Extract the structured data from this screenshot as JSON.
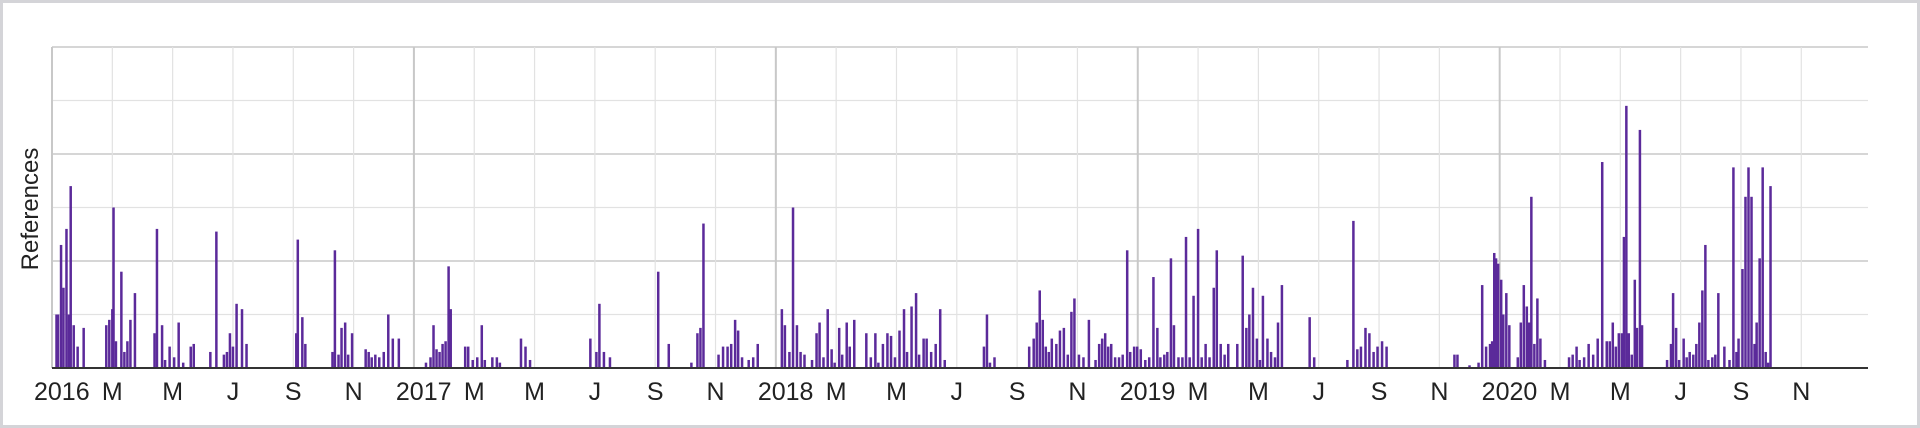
{
  "chart_data": {
    "type": "bar",
    "title": "",
    "xlabel": "",
    "ylabel": "References",
    "grid": true,
    "colors": {
      "bars": "#5b2a9a",
      "grid": "#e2e2e2",
      "major_grid": "#c8c8c8",
      "axis": "#333333",
      "border": "#d4d4d8"
    },
    "x_range": [
      "2016-01",
      "2020-12"
    ],
    "x_tick_labels": [
      "2016",
      "M",
      "M",
      "J",
      "S",
      "N",
      "2017",
      "M",
      "M",
      "J",
      "S",
      "N",
      "2018",
      "M",
      "M",
      "J",
      "S",
      "N",
      "2019",
      "M",
      "M",
      "J",
      "S",
      "N",
      "2020",
      "M",
      "M",
      "J",
      "S",
      "N"
    ],
    "x_tick_months": [
      0,
      2,
      4,
      6,
      8,
      10,
      12,
      14,
      16,
      18,
      20,
      22,
      24,
      26,
      28,
      30,
      32,
      34,
      36,
      38,
      40,
      42,
      44,
      46,
      48,
      50,
      52,
      54,
      56,
      58
    ],
    "year_starts": [
      0,
      12,
      24,
      36,
      48
    ],
    "y_max": 12,
    "series": [
      {
        "values": [
          [
            0.15,
            2
          ],
          [
            0.2,
            2
          ],
          [
            0.3,
            4.6
          ],
          [
            0.38,
            3
          ],
          [
            0.48,
            5.2
          ],
          [
            0.56,
            2
          ],
          [
            0.62,
            6.8
          ],
          [
            0.72,
            1.6
          ],
          [
            0.85,
            0.8
          ],
          [
            1.05,
            1.5
          ],
          [
            1.8,
            1.6
          ],
          [
            1.9,
            1.8
          ],
          [
            2.0,
            2.2
          ],
          [
            2.04,
            6
          ],
          [
            2.12,
            1
          ],
          [
            2.3,
            3.6
          ],
          [
            2.4,
            0.6
          ],
          [
            2.5,
            1
          ],
          [
            2.6,
            1.8
          ],
          [
            2.75,
            2.8
          ],
          [
            3.4,
            1.3
          ],
          [
            3.48,
            5.2
          ],
          [
            3.65,
            1.6
          ],
          [
            3.75,
            0.3
          ],
          [
            3.9,
            0.8
          ],
          [
            4.05,
            0.4
          ],
          [
            4.2,
            1.7
          ],
          [
            4.35,
            0.2
          ],
          [
            4.6,
            0.8
          ],
          [
            4.7,
            0.9
          ],
          [
            5.25,
            0.6
          ],
          [
            5.45,
            5.1
          ],
          [
            5.7,
            0.5
          ],
          [
            5.8,
            0.6
          ],
          [
            5.9,
            1.3
          ],
          [
            6.0,
            0.8
          ],
          [
            6.12,
            2.4
          ],
          [
            6.3,
            2.2
          ],
          [
            6.45,
            0.9
          ],
          [
            8.1,
            1.3
          ],
          [
            8.15,
            4.8
          ],
          [
            8.3,
            1.9
          ],
          [
            8.4,
            0.9
          ],
          [
            9.3,
            0.6
          ],
          [
            9.38,
            4.4
          ],
          [
            9.5,
            0.5
          ],
          [
            9.6,
            1.5
          ],
          [
            9.72,
            1.7
          ],
          [
            9.82,
            0.5
          ],
          [
            9.95,
            1.3
          ],
          [
            10.4,
            0.7
          ],
          [
            10.5,
            0.6
          ],
          [
            10.6,
            0.4
          ],
          [
            10.72,
            0.5
          ],
          [
            10.85,
            0.4
          ],
          [
            11.0,
            0.6
          ],
          [
            11.15,
            2
          ],
          [
            11.3,
            1.1
          ],
          [
            11.5,
            1.1
          ],
          [
            12.4,
            0.2
          ],
          [
            12.55,
            0.4
          ],
          [
            12.65,
            1.6
          ],
          [
            12.75,
            0.7
          ],
          [
            12.85,
            0.6
          ],
          [
            12.95,
            0.9
          ],
          [
            13.05,
            1
          ],
          [
            13.15,
            3.8
          ],
          [
            13.22,
            2.2
          ],
          [
            13.7,
            0.8
          ],
          [
            13.8,
            0.8
          ],
          [
            13.95,
            0.3
          ],
          [
            14.1,
            0.4
          ],
          [
            14.25,
            1.6
          ],
          [
            14.35,
            0.3
          ],
          [
            14.6,
            0.4
          ],
          [
            14.75,
            0.4
          ],
          [
            14.85,
            0.2
          ],
          [
            15.55,
            1.1
          ],
          [
            15.7,
            0.8
          ],
          [
            15.85,
            0.3
          ],
          [
            17.85,
            1.1
          ],
          [
            18.05,
            0.6
          ],
          [
            18.15,
            2.4
          ],
          [
            18.3,
            0.6
          ],
          [
            18.5,
            0.4
          ],
          [
            20.1,
            3.6
          ],
          [
            20.45,
            0.9
          ],
          [
            21.2,
            0.2
          ],
          [
            21.4,
            1.3
          ],
          [
            21.5,
            1.5
          ],
          [
            21.6,
            5.4
          ],
          [
            22.1,
            0.5
          ],
          [
            22.25,
            0.8
          ],
          [
            22.4,
            0.8
          ],
          [
            22.52,
            0.9
          ],
          [
            22.65,
            1.8
          ],
          [
            22.75,
            1.4
          ],
          [
            22.88,
            0.4
          ],
          [
            23.1,
            0.3
          ],
          [
            23.25,
            0.4
          ],
          [
            23.4,
            0.9
          ],
          [
            24.2,
            2.2
          ],
          [
            24.3,
            1.6
          ],
          [
            24.45,
            0.6
          ],
          [
            24.57,
            6
          ],
          [
            24.7,
            1.6
          ],
          [
            24.82,
            0.6
          ],
          [
            24.95,
            0.5
          ],
          [
            25.2,
            0.3
          ],
          [
            25.35,
            1.3
          ],
          [
            25.45,
            1.7
          ],
          [
            25.58,
            0.4
          ],
          [
            25.72,
            2.2
          ],
          [
            25.85,
            0.7
          ],
          [
            25.95,
            0.2
          ],
          [
            26.1,
            1.5
          ],
          [
            26.2,
            0.5
          ],
          [
            26.35,
            1.7
          ],
          [
            26.45,
            0.8
          ],
          [
            26.6,
            1.8
          ],
          [
            27.0,
            1.3
          ],
          [
            27.15,
            0.4
          ],
          [
            27.3,
            1.3
          ],
          [
            27.4,
            0.2
          ],
          [
            27.55,
            0.9
          ],
          [
            27.7,
            1.3
          ],
          [
            27.82,
            1.2
          ],
          [
            27.95,
            0.4
          ],
          [
            28.1,
            1.4
          ],
          [
            28.25,
            2.2
          ],
          [
            28.35,
            0.6
          ],
          [
            28.5,
            2.3
          ],
          [
            28.65,
            2.8
          ],
          [
            28.75,
            0.5
          ],
          [
            28.9,
            1.1
          ],
          [
            29.0,
            1.1
          ],
          [
            29.15,
            0.6
          ],
          [
            29.3,
            0.9
          ],
          [
            29.45,
            2.2
          ],
          [
            29.6,
            0.3
          ],
          [
            30.9,
            0.8
          ],
          [
            31.0,
            2
          ],
          [
            31.1,
            0.2
          ],
          [
            31.25,
            0.4
          ],
          [
            32.4,
            0.8
          ],
          [
            32.55,
            1.1
          ],
          [
            32.65,
            1.7
          ],
          [
            32.75,
            2.9
          ],
          [
            32.85,
            1.8
          ],
          [
            32.95,
            0.8
          ],
          [
            33.05,
            0.6
          ],
          [
            33.15,
            1.1
          ],
          [
            33.3,
            0.9
          ],
          [
            33.42,
            1.4
          ],
          [
            33.55,
            1.5
          ],
          [
            33.68,
            0.5
          ],
          [
            33.8,
            2.1
          ],
          [
            33.9,
            2.6
          ],
          [
            34.05,
            0.5
          ],
          [
            34.2,
            0.4
          ],
          [
            34.38,
            1.8
          ],
          [
            34.6,
            0.3
          ],
          [
            34.72,
            0.9
          ],
          [
            34.82,
            1.1
          ],
          [
            34.92,
            1.3
          ],
          [
            35.02,
            0.8
          ],
          [
            35.12,
            0.9
          ],
          [
            35.25,
            0.4
          ],
          [
            35.38,
            0.4
          ],
          [
            35.5,
            0.5
          ],
          [
            35.65,
            4.4
          ],
          [
            35.75,
            0.6
          ],
          [
            35.88,
            0.8
          ],
          [
            35.98,
            0.8
          ],
          [
            36.1,
            0.7
          ],
          [
            36.25,
            0.3
          ],
          [
            36.38,
            0.4
          ],
          [
            36.52,
            3.4
          ],
          [
            36.65,
            1.5
          ],
          [
            36.75,
            0.4
          ],
          [
            36.88,
            0.5
          ],
          [
            36.98,
            0.6
          ],
          [
            37.1,
            4.1
          ],
          [
            37.2,
            1.6
          ],
          [
            37.35,
            0.4
          ],
          [
            37.48,
            0.4
          ],
          [
            37.6,
            4.9
          ],
          [
            37.72,
            0.4
          ],
          [
            37.85,
            2.7
          ],
          [
            38.0,
            5.2
          ],
          [
            38.12,
            0.4
          ],
          [
            38.25,
            0.9
          ],
          [
            38.38,
            0.4
          ],
          [
            38.52,
            3
          ],
          [
            38.62,
            4.4
          ],
          [
            38.75,
            0.9
          ],
          [
            38.88,
            0.5
          ],
          [
            39.0,
            0.9
          ],
          [
            39.3,
            0.9
          ],
          [
            39.48,
            4.2
          ],
          [
            39.6,
            1.5
          ],
          [
            39.7,
            2
          ],
          [
            39.82,
            3
          ],
          [
            39.95,
            1.1
          ],
          [
            40.05,
            0.3
          ],
          [
            40.15,
            2.7
          ],
          [
            40.3,
            1.1
          ],
          [
            40.42,
            0.6
          ],
          [
            40.55,
            0.4
          ],
          [
            40.65,
            1.7
          ],
          [
            40.78,
            3.1
          ],
          [
            41.7,
            1.9
          ],
          [
            41.85,
            0.4
          ],
          [
            42.95,
            0.3
          ],
          [
            43.15,
            5.5
          ],
          [
            43.28,
            0.7
          ],
          [
            43.4,
            0.8
          ],
          [
            43.55,
            1.5
          ],
          [
            43.68,
            1.3
          ],
          [
            43.82,
            0.6
          ],
          [
            43.95,
            0.8
          ],
          [
            44.1,
            1
          ],
          [
            44.25,
            0.8
          ],
          [
            46.5,
            0.5
          ],
          [
            46.6,
            0.5
          ],
          [
            47.0,
            0.1
          ],
          [
            47.3,
            0.2
          ],
          [
            47.42,
            3.1
          ],
          [
            47.55,
            0.8
          ],
          [
            47.68,
            0.9
          ],
          [
            47.75,
            1
          ],
          [
            47.82,
            4.3
          ],
          [
            47.88,
            4.1
          ],
          [
            47.95,
            3.9
          ],
          [
            48.05,
            3.3
          ],
          [
            48.12,
            2
          ],
          [
            48.22,
            2.8
          ],
          [
            48.32,
            1.6
          ],
          [
            48.6,
            0.4
          ],
          [
            48.7,
            1.7
          ],
          [
            48.8,
            3.1
          ],
          [
            48.9,
            2.3
          ],
          [
            48.98,
            1.7
          ],
          [
            49.05,
            6.4
          ],
          [
            49.15,
            0.9
          ],
          [
            49.25,
            2.6
          ],
          [
            49.35,
            1.1
          ],
          [
            49.5,
            0.3
          ],
          [
            50.3,
            0.4
          ],
          [
            50.42,
            0.5
          ],
          [
            50.55,
            0.8
          ],
          [
            50.65,
            0.3
          ],
          [
            50.8,
            0.4
          ],
          [
            50.95,
            0.9
          ],
          [
            51.1,
            0.5
          ],
          [
            51.25,
            1.1
          ],
          [
            51.4,
            7.7
          ],
          [
            51.55,
            1
          ],
          [
            51.65,
            1
          ],
          [
            51.75,
            1.7
          ],
          [
            51.85,
            0.8
          ],
          [
            51.95,
            1.3
          ],
          [
            52.05,
            1.3
          ],
          [
            52.12,
            4.9
          ],
          [
            52.2,
            9.8
          ],
          [
            52.28,
            1.3
          ],
          [
            52.38,
            0.5
          ],
          [
            52.48,
            3.3
          ],
          [
            52.55,
            1.5
          ],
          [
            52.65,
            8.9
          ],
          [
            52.72,
            1.6
          ],
          [
            53.55,
            0.3
          ],
          [
            53.68,
            0.9
          ],
          [
            53.75,
            2.8
          ],
          [
            53.85,
            1.5
          ],
          [
            53.95,
            0.3
          ],
          [
            54.1,
            1.1
          ],
          [
            54.2,
            0.4
          ],
          [
            54.3,
            0.6
          ],
          [
            54.42,
            0.5
          ],
          [
            54.52,
            0.9
          ],
          [
            54.62,
            1.7
          ],
          [
            54.72,
            2.9
          ],
          [
            54.82,
            4.6
          ],
          [
            54.92,
            0.3
          ],
          [
            55.05,
            0.4
          ],
          [
            55.15,
            0.5
          ],
          [
            55.25,
            2.8
          ],
          [
            55.45,
            0.8
          ],
          [
            55.62,
            0.3
          ],
          [
            55.75,
            7.5
          ],
          [
            55.85,
            0.6
          ],
          [
            55.92,
            1.1
          ],
          [
            56.05,
            3.7
          ],
          [
            56.15,
            6.4
          ],
          [
            56.25,
            7.5
          ],
          [
            56.35,
            6.4
          ],
          [
            56.45,
            0.9
          ],
          [
            56.52,
            1.7
          ],
          [
            56.62,
            4.1
          ],
          [
            56.72,
            7.5
          ],
          [
            56.82,
            0.6
          ],
          [
            56.9,
            0.2
          ],
          [
            56.98,
            6.8
          ]
        ]
      }
    ]
  }
}
